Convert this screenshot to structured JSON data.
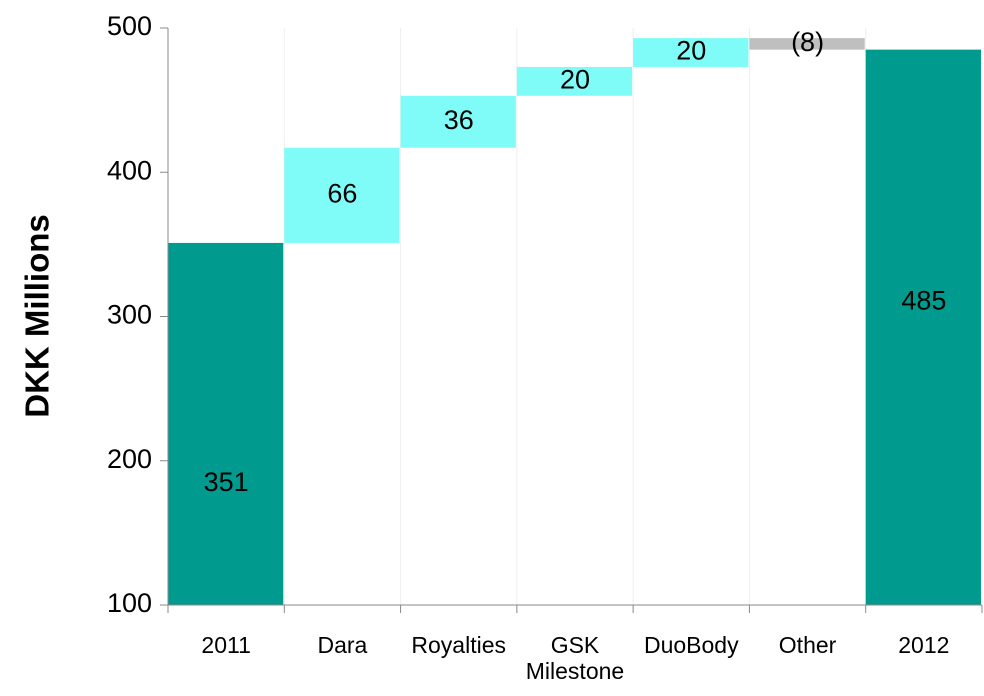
{
  "chart_data": {
    "type": "waterfall",
    "y_label": "DKK Millions",
    "categories": [
      "2011",
      "Dara",
      "Royalties",
      "GSK Milestone",
      "DuoBody",
      "Other",
      "2012"
    ],
    "values": [
      351,
      66,
      36,
      20,
      20,
      -8,
      485
    ],
    "value_labels": [
      "351",
      "66",
      "36",
      "20",
      "20",
      "(8)",
      "485"
    ],
    "measures": [
      "total",
      "relative",
      "relative",
      "relative",
      "relative",
      "relative",
      "total"
    ],
    "colors": {
      "total": "#009a8e",
      "increase": "#7ffcf7",
      "decrease": "#bfbfbf"
    },
    "ylim": [
      100,
      500
    ],
    "yticks": [
      100,
      200,
      300,
      400,
      500
    ]
  }
}
